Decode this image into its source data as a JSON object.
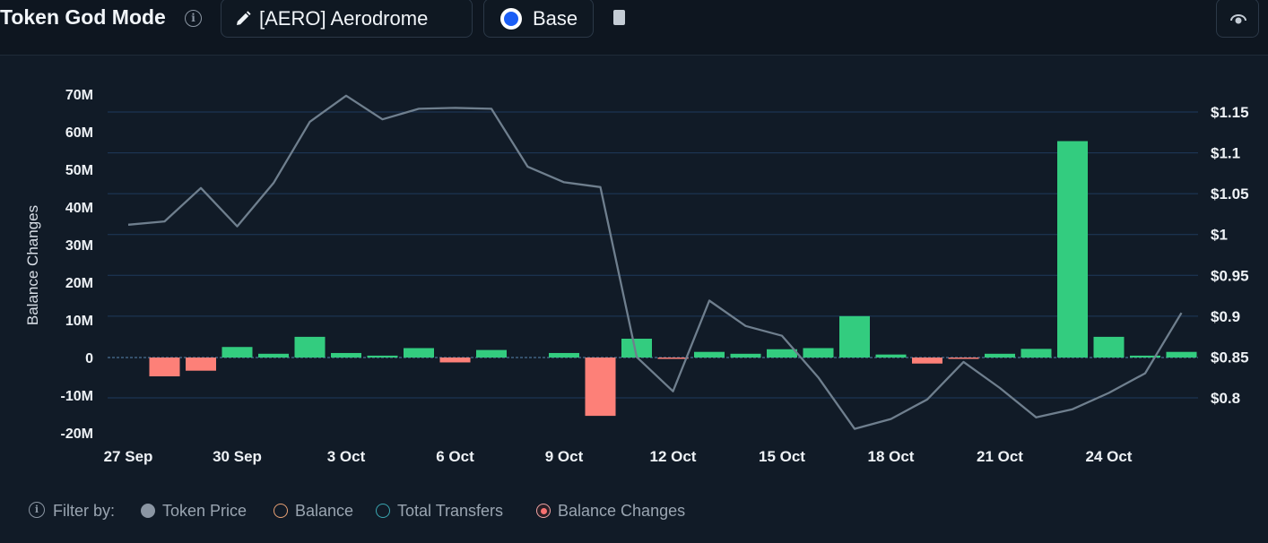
{
  "header": {
    "title": "Token God Mode",
    "token_label": "[AERO] Aerodrome",
    "chain_label": "Base"
  },
  "legend": {
    "filter_label": "Filter by:",
    "items": [
      {
        "label": "Token Price",
        "color": "#8b96a3"
      },
      {
        "label": "Balance",
        "color": "#e8a174"
      },
      {
        "label": "Total Transfers",
        "color": "#3aa6b0"
      },
      {
        "label": "Balance Changes",
        "color": "#f87171"
      }
    ]
  },
  "colors": {
    "positive_bar": "#33cc7f",
    "negative_bar": "#fd8078",
    "price_line": "#6f7f8e",
    "grid": "#1f3a5c",
    "zero_line": "#4a6f94"
  },
  "chart_data": {
    "type": "bar",
    "x_tick_labels": [
      "27 Sep",
      "30 Sep",
      "3 Oct",
      "6 Oct",
      "9 Oct",
      "12 Oct",
      "15 Oct",
      "18 Oct",
      "21 Oct",
      "24 Oct"
    ],
    "categories": [
      "27 Sep",
      "28 Sep",
      "29 Sep",
      "30 Sep",
      "1 Oct",
      "2 Oct",
      "3 Oct",
      "4 Oct",
      "5 Oct",
      "6 Oct",
      "7 Oct",
      "8 Oct",
      "9 Oct",
      "10 Oct",
      "11 Oct",
      "12 Oct",
      "13 Oct",
      "14 Oct",
      "15 Oct",
      "16 Oct",
      "17 Oct",
      "18 Oct",
      "19 Oct",
      "20 Oct",
      "21 Oct",
      "22 Oct",
      "23 Oct",
      "24 Oct",
      "25 Oct",
      "26 Oct"
    ],
    "series": [
      {
        "name": "Balance Changes",
        "axis": "left",
        "values": [
          0,
          -5,
          -3.5,
          2.8,
          1,
          5.5,
          1.2,
          0.5,
          2.5,
          -1.3,
          2,
          0,
          1.2,
          -15.5,
          5,
          -0.3,
          1.5,
          1,
          2.2,
          2.5,
          11,
          0.8,
          -1.6,
          -0.3,
          1,
          2.3,
          57.5,
          5.5,
          0.5,
          1.5
        ]
      },
      {
        "name": "Token Price",
        "axis": "right",
        "values": [
          1.012,
          1.016,
          1.057,
          1.01,
          1.063,
          1.138,
          1.17,
          1.141,
          1.154,
          1.155,
          1.154,
          1.083,
          1.064,
          1.058,
          0.85,
          0.808,
          0.919,
          0.888,
          0.876,
          0.825,
          0.762,
          0.774,
          0.798,
          0.844,
          0.812,
          0.776,
          0.786,
          0.806,
          0.83,
          0.904
        ]
      }
    ],
    "ylabel": "Balance Changes",
    "y_unit": "M",
    "ylim": [
      -20,
      70
    ],
    "y_ticks": [
      "70M",
      "60M",
      "50M",
      "40M",
      "30M",
      "20M",
      "10M",
      "0",
      "-10M",
      "-20M"
    ],
    "y2lim": [
      0.77,
      1.17
    ],
    "y2_ticks": [
      "$1.15",
      "$1.1",
      "$1.05",
      "$1",
      "$0.95",
      "$0.9",
      "$0.85",
      "$0.8"
    ],
    "grid": true
  }
}
